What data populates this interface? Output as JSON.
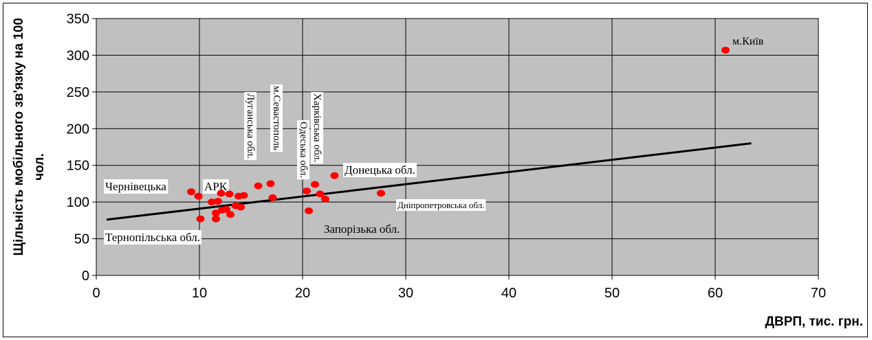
{
  "chart_data": {
    "type": "scatter",
    "title": "",
    "xlabel": "ДВРП, тис. грн.",
    "ylabel_line1": "Щільність мобільного зв'язку на 100",
    "ylabel_line2": "чол.",
    "xlim": [
      0,
      70
    ],
    "ylim": [
      0,
      350
    ],
    "xticks": [
      0,
      10,
      20,
      30,
      40,
      50,
      60,
      70
    ],
    "yticks": [
      0,
      50,
      100,
      150,
      200,
      250,
      300,
      350
    ],
    "grid": true,
    "legend": "none",
    "colors": {
      "plot_bg": "#c0c0c0",
      "point": "#ff0000",
      "trend": "#000000",
      "grid": "#000000"
    },
    "points": [
      {
        "x": 9.2,
        "y": 114
      },
      {
        "x": 9.9,
        "y": 108
      },
      {
        "x": 10.1,
        "y": 77
      },
      {
        "x": 11.2,
        "y": 100
      },
      {
        "x": 11.6,
        "y": 85
      },
      {
        "x": 11.6,
        "y": 77
      },
      {
        "x": 11.8,
        "y": 101
      },
      {
        "x": 12.1,
        "y": 112
      },
      {
        "x": 12.2,
        "y": 89
      },
      {
        "x": 12.6,
        "y": 90
      },
      {
        "x": 12.9,
        "y": 111
      },
      {
        "x": 13.0,
        "y": 83
      },
      {
        "x": 13.5,
        "y": 95
      },
      {
        "x": 13.8,
        "y": 108
      },
      {
        "x": 14.0,
        "y": 93
      },
      {
        "x": 14.3,
        "y": 109
      },
      {
        "x": 15.7,
        "y": 122
      },
      {
        "x": 16.9,
        "y": 125
      },
      {
        "x": 17.1,
        "y": 106
      },
      {
        "x": 20.4,
        "y": 115
      },
      {
        "x": 20.6,
        "y": 88
      },
      {
        "x": 21.2,
        "y": 124
      },
      {
        "x": 21.7,
        "y": 111
      },
      {
        "x": 22.2,
        "y": 104
      },
      {
        "x": 23.1,
        "y": 136
      },
      {
        "x": 27.6,
        "y": 112
      },
      {
        "x": 61.0,
        "y": 307
      }
    ],
    "trendline": {
      "x": [
        1,
        63.5
      ],
      "y": [
        76,
        180
      ]
    },
    "annotations": [
      {
        "id": "kyiv",
        "text": "м.Київ"
      },
      {
        "id": "chernivetska",
        "text": "Чернівецька"
      },
      {
        "id": "ark",
        "text": "АРК"
      },
      {
        "id": "ternopilska",
        "text": "Тернопільська обл."
      },
      {
        "id": "luhanska",
        "text": "Луганська обл."
      },
      {
        "id": "sevastopol",
        "text": "м.Севастополь"
      },
      {
        "id": "odeska",
        "text": "Одеська обл."
      },
      {
        "id": "kharkivska",
        "text": "Харківська обл."
      },
      {
        "id": "donetska",
        "text": "Донецька обл."
      },
      {
        "id": "dnipropetrovska",
        "text": "Дніпропетровська обл."
      },
      {
        "id": "zaporizka",
        "text": "Запорізька обл."
      }
    ]
  }
}
